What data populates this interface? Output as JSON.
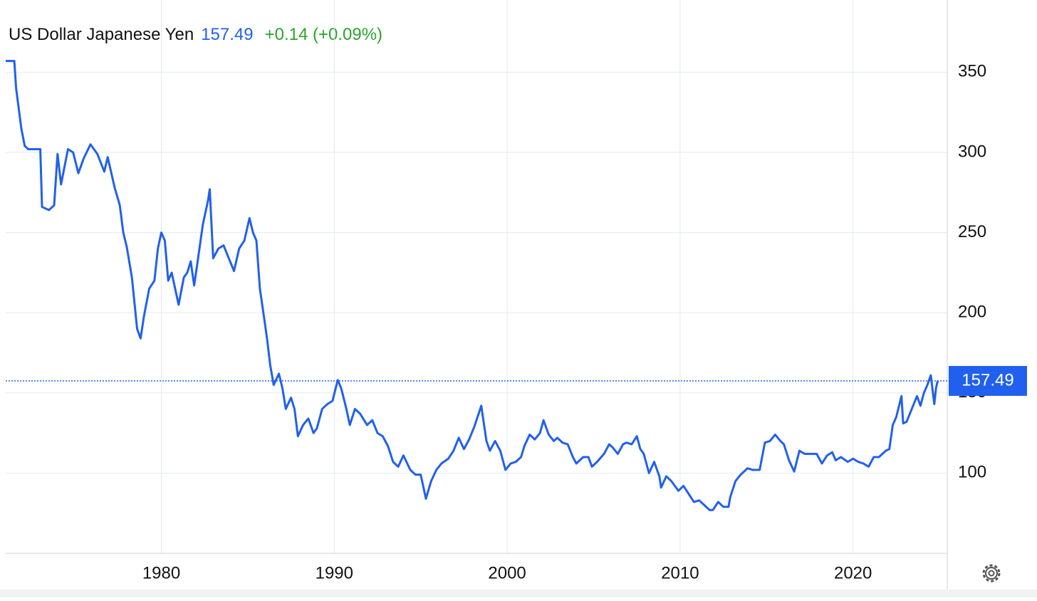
{
  "chart_data": {
    "type": "line",
    "title": "US Dollar Japanese Yen",
    "last_value": 157.49,
    "change": "+0.14 (+0.09%)",
    "change_color": "#2aa52a",
    "grid": true,
    "xlim": [
      1971.0,
      2025.45
    ],
    "xticks": [
      1980,
      1990,
      2000,
      2010,
      2020
    ],
    "ylim": [
      50,
      395
    ],
    "yticks": [
      100,
      150,
      200,
      250,
      300,
      350
    ],
    "series": [
      {
        "color": "#2160ee",
        "x": [
          1971.0,
          1971.5,
          1971.6,
          1971.9,
          1972.1,
          1972.3,
          1973.0,
          1973.1,
          1973.5,
          1973.8,
          1974.0,
          1974.2,
          1974.6,
          1974.9,
          1975.2,
          1975.5,
          1975.9,
          1976.3,
          1976.7,
          1976.9,
          1977.3,
          1977.6,
          1977.8,
          1978.0,
          1978.3,
          1978.6,
          1978.8,
          1979.0,
          1979.3,
          1979.6,
          1979.8,
          1980.0,
          1980.2,
          1980.4,
          1980.6,
          1980.8,
          1981.0,
          1981.3,
          1981.5,
          1981.7,
          1981.9,
          1982.1,
          1982.4,
          1982.7,
          1982.8,
          1983.0,
          1983.3,
          1983.6,
          1983.9,
          1984.2,
          1984.5,
          1984.8,
          1985.1,
          1985.3,
          1985.5,
          1985.7,
          1985.9,
          1986.1,
          1986.3,
          1986.5,
          1986.8,
          1987.0,
          1987.2,
          1987.5,
          1987.7,
          1987.9,
          1988.2,
          1988.5,
          1988.8,
          1989.0,
          1989.3,
          1989.6,
          1989.9,
          1990.2,
          1990.4,
          1990.7,
          1990.9,
          1991.2,
          1991.5,
          1991.9,
          1992.2,
          1992.5,
          1992.8,
          1993.1,
          1993.4,
          1993.7,
          1994.0,
          1994.4,
          1994.7,
          1995.0,
          1995.3,
          1995.6,
          1995.9,
          1996.2,
          1996.6,
          1996.9,
          1997.2,
          1997.5,
          1997.8,
          1998.1,
          1998.5,
          1998.8,
          1999.0,
          1999.3,
          1999.6,
          1999.9,
          2000.2,
          2000.5,
          2000.8,
          2001.0,
          2001.3,
          2001.6,
          2001.9,
          2002.1,
          2002.4,
          2002.7,
          2002.9,
          2003.2,
          2003.5,
          2003.8,
          2004.0,
          2004.4,
          2004.7,
          2004.9,
          2005.2,
          2005.6,
          2005.9,
          2006.1,
          2006.4,
          2006.7,
          2006.9,
          2007.2,
          2007.5,
          2007.7,
          2007.9,
          2008.2,
          2008.5,
          2008.8,
          2008.9,
          2009.2,
          2009.5,
          2009.9,
          2010.2,
          2010.5,
          2010.8,
          2011.1,
          2011.4,
          2011.7,
          2011.9,
          2012.2,
          2012.5,
          2012.8,
          2012.9,
          2013.2,
          2013.5,
          2013.9,
          2014.2,
          2014.6,
          2014.9,
          2015.2,
          2015.5,
          2015.8,
          2016.0,
          2016.3,
          2016.6,
          2016.9,
          2017.2,
          2017.5,
          2017.9,
          2018.2,
          2018.5,
          2018.8,
          2019.0,
          2019.3,
          2019.7,
          2020.0,
          2020.3,
          2020.6,
          2020.9,
          2021.2,
          2021.5,
          2021.9,
          2022.1,
          2022.3,
          2022.5,
          2022.8,
          2022.9,
          2023.1,
          2023.4,
          2023.7,
          2023.9,
          2024.1,
          2024.3,
          2024.5,
          2024.7,
          2024.8,
          2024.9
        ],
        "values": [
          357,
          357,
          340,
          315,
          304,
          302,
          302,
          266,
          264,
          267,
          299,
          280,
          302,
          300,
          287,
          296,
          305,
          299,
          288,
          297,
          278,
          267,
          250,
          241,
          222,
          190,
          184,
          198,
          215,
          220,
          240,
          250,
          245,
          220,
          225,
          215,
          205,
          222,
          225,
          232,
          217,
          232,
          255,
          270,
          277,
          234,
          240,
          242,
          234,
          226,
          240,
          245,
          259,
          250,
          245,
          215,
          200,
          185,
          167,
          155,
          162,
          153,
          140,
          147,
          140,
          123,
          130,
          134,
          125,
          128,
          140,
          143,
          145,
          158,
          153,
          140,
          130,
          140,
          137,
          130,
          133,
          125,
          123,
          117,
          107,
          104,
          111,
          102,
          99,
          99,
          84,
          95,
          102,
          106,
          109,
          114,
          122,
          115,
          121,
          129,
          142,
          120,
          114,
          120,
          114,
          102,
          106,
          107,
          110,
          117,
          124,
          121,
          125,
          133,
          124,
          120,
          122,
          119,
          118,
          110,
          106,
          110,
          110,
          104,
          107,
          112,
          118,
          116,
          112,
          118,
          119,
          118,
          123,
          115,
          112,
          100,
          107,
          98,
          91,
          98,
          95,
          89,
          92,
          87,
          82,
          83,
          80,
          77,
          77,
          82,
          79,
          79,
          85,
          95,
          99,
          103,
          102,
          102,
          119,
          120,
          124,
          120,
          118,
          108,
          101,
          114,
          112,
          112,
          112,
          106,
          111,
          113,
          108,
          110,
          107,
          109,
          107,
          106,
          104,
          110,
          110,
          114,
          115,
          130,
          135,
          148,
          131,
          132,
          140,
          148,
          142,
          150,
          155,
          161,
          143,
          153,
          157.49
        ]
      }
    ]
  }
}
